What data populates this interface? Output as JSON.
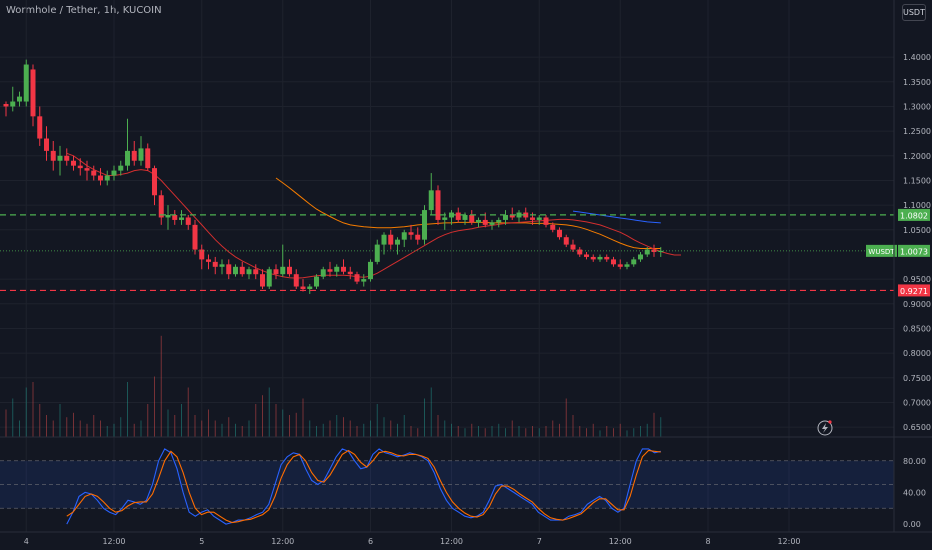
{
  "header": {
    "title": "Wormhole / Tether, 1h, KUCOIN"
  },
  "unit_button": "USDT",
  "colors": {
    "background": "#131722",
    "up": "#26a69a",
    "down": "#ef5350",
    "green": "#4caf50",
    "red": "#f23645",
    "ma_red": "#d32f2f",
    "ma_orange": "#f57c00",
    "ma_blue": "#2962ff",
    "stoch_k": "#2962ff",
    "stoch_d": "#ff6d00",
    "resistance": "#4caf50",
    "support": "#f23645"
  },
  "chart_data": [
    {
      "type": "candlestick",
      "y_axis": {
        "ylim": [
          0.63,
          1.455
        ],
        "ticks": [
          "1.4000",
          "1.3500",
          "1.3000",
          "1.2500",
          "1.2000",
          "1.1500",
          "1.1000",
          "1.0500",
          "0.9500",
          "0.9000",
          "0.8500",
          "0.8000",
          "0.7500",
          "0.7000",
          "0.6500"
        ],
        "tick_values": [
          1.4,
          1.35,
          1.3,
          1.25,
          1.2,
          1.15,
          1.1,
          1.05,
          0.95,
          0.9,
          0.85,
          0.8,
          0.75,
          0.7,
          0.65
        ]
      },
      "x_axis": {
        "labels": [
          "4",
          "12:00",
          "5",
          "12:00",
          "6",
          "12:00",
          "7",
          "12:00",
          "8",
          "12:00"
        ],
        "label_bars": [
          3,
          16,
          29,
          41,
          54,
          66,
          79,
          91,
          104,
          116
        ]
      },
      "candles": [
        [
          1.305,
          1.31,
          1.28,
          1.3
        ],
        [
          1.3,
          1.34,
          1.29,
          1.31
        ],
        [
          1.31,
          1.33,
          1.3,
          1.32
        ],
        [
          1.31,
          1.395,
          1.3,
          1.385
        ],
        [
          1.375,
          1.385,
          1.26,
          1.28
        ],
        [
          1.28,
          1.3,
          1.22,
          1.235
        ],
        [
          1.235,
          1.26,
          1.19,
          1.21
        ],
        [
          1.21,
          1.23,
          1.17,
          1.19
        ],
        [
          1.19,
          1.22,
          1.16,
          1.2
        ],
        [
          1.2,
          1.215,
          1.18,
          1.19
        ],
        [
          1.19,
          1.2,
          1.17,
          1.18
        ],
        [
          1.18,
          1.195,
          1.16,
          1.175
        ],
        [
          1.175,
          1.19,
          1.15,
          1.17
        ],
        [
          1.17,
          1.18,
          1.15,
          1.16
        ],
        [
          1.16,
          1.175,
          1.14,
          1.15
        ],
        [
          1.15,
          1.17,
          1.14,
          1.16
        ],
        [
          1.16,
          1.18,
          1.15,
          1.17
        ],
        [
          1.17,
          1.19,
          1.16,
          1.18
        ],
        [
          1.18,
          1.275,
          1.17,
          1.21
        ],
        [
          1.21,
          1.23,
          1.18,
          1.19
        ],
        [
          1.19,
          1.24,
          1.18,
          1.215
        ],
        [
          1.215,
          1.225,
          1.17,
          1.175
        ],
        [
          1.175,
          1.18,
          1.1,
          1.12
        ],
        [
          1.12,
          1.13,
          1.06,
          1.075
        ],
        [
          1.075,
          1.1,
          1.05,
          1.08
        ],
        [
          1.08,
          1.09,
          1.06,
          1.07
        ],
        [
          1.07,
          1.09,
          1.06,
          1.075
        ],
        [
          1.075,
          1.08,
          1.05,
          1.06
        ],
        [
          1.06,
          1.07,
          1.0,
          1.01
        ],
        [
          1.01,
          1.02,
          0.97,
          0.99
        ],
        [
          0.99,
          1.0,
          0.97,
          0.985
        ],
        [
          0.985,
          0.995,
          0.96,
          0.975
        ],
        [
          0.975,
          0.99,
          0.96,
          0.98
        ],
        [
          0.98,
          0.99,
          0.95,
          0.96
        ],
        [
          0.96,
          0.98,
          0.955,
          0.975
        ],
        [
          0.975,
          0.985,
          0.955,
          0.96
        ],
        [
          0.96,
          0.975,
          0.95,
          0.97
        ],
        [
          0.97,
          0.98,
          0.95,
          0.96
        ],
        [
          0.96,
          0.97,
          0.93,
          0.935
        ],
        [
          0.935,
          0.975,
          0.93,
          0.97
        ],
        [
          0.97,
          0.98,
          0.95,
          0.96
        ],
        [
          0.96,
          1.02,
          0.955,
          0.975
        ],
        [
          0.975,
          0.99,
          0.955,
          0.96
        ],
        [
          0.96,
          0.97,
          0.93,
          0.935
        ],
        [
          0.935,
          0.95,
          0.925,
          0.93
        ],
        [
          0.93,
          0.94,
          0.92,
          0.935
        ],
        [
          0.935,
          0.96,
          0.93,
          0.955
        ],
        [
          0.955,
          0.975,
          0.95,
          0.97
        ],
        [
          0.97,
          0.985,
          0.955,
          0.965
        ],
        [
          0.965,
          0.98,
          0.955,
          0.975
        ],
        [
          0.975,
          0.99,
          0.96,
          0.965
        ],
        [
          0.965,
          0.975,
          0.95,
          0.96
        ],
        [
          0.96,
          0.965,
          0.94,
          0.945
        ],
        [
          0.945,
          0.96,
          0.935,
          0.95
        ],
        [
          0.95,
          0.99,
          0.945,
          0.985
        ],
        [
          0.985,
          1.03,
          0.98,
          1.02
        ],
        [
          1.02,
          1.045,
          1.0,
          1.04
        ],
        [
          1.04,
          1.05,
          1.01,
          1.02
        ],
        [
          1.02,
          1.035,
          1.0,
          1.03
        ],
        [
          1.03,
          1.05,
          1.015,
          1.045
        ],
        [
          1.045,
          1.06,
          1.03,
          1.04
        ],
        [
          1.04,
          1.055,
          1.02,
          1.03
        ],
        [
          1.03,
          1.1,
          1.02,
          1.09
        ],
        [
          1.09,
          1.165,
          1.08,
          1.13
        ],
        [
          1.13,
          1.14,
          1.06,
          1.07
        ],
        [
          1.07,
          1.085,
          1.05,
          1.075
        ],
        [
          1.075,
          1.09,
          1.06,
          1.085
        ],
        [
          1.085,
          1.095,
          1.065,
          1.07
        ],
        [
          1.07,
          1.085,
          1.06,
          1.08
        ],
        [
          1.08,
          1.09,
          1.06,
          1.065
        ],
        [
          1.065,
          1.075,
          1.055,
          1.07
        ],
        [
          1.07,
          1.085,
          1.055,
          1.06
        ],
        [
          1.06,
          1.07,
          1.05,
          1.065
        ],
        [
          1.065,
          1.075,
          1.055,
          1.07
        ],
        [
          1.07,
          1.09,
          1.06,
          1.08
        ],
        [
          1.08,
          1.095,
          1.07,
          1.075
        ],
        [
          1.075,
          1.09,
          1.065,
          1.085
        ],
        [
          1.085,
          1.095,
          1.07,
          1.075
        ],
        [
          1.075,
          1.085,
          1.06,
          1.07
        ],
        [
          1.07,
          1.08,
          1.06,
          1.075
        ],
        [
          1.075,
          1.08,
          1.055,
          1.06
        ],
        [
          1.06,
          1.065,
          1.045,
          1.05
        ],
        [
          1.05,
          1.055,
          1.03,
          1.035
        ],
        [
          1.035,
          1.04,
          1.015,
          1.02
        ],
        [
          1.02,
          1.03,
          1.005,
          1.01
        ],
        [
          1.01,
          1.015,
          0.995,
          1.0
        ],
        [
          1.0,
          1.005,
          0.99,
          0.995
        ],
        [
          0.995,
          1.0,
          0.985,
          0.99
        ],
        [
          0.99,
          1.0,
          0.985,
          0.995
        ],
        [
          0.995,
          1.0,
          0.985,
          0.99
        ],
        [
          0.99,
          0.995,
          0.975,
          0.98
        ],
        [
          0.98,
          0.99,
          0.97,
          0.975
        ],
        [
          0.975,
          0.985,
          0.97,
          0.98
        ],
        [
          0.98,
          0.995,
          0.975,
          0.99
        ],
        [
          0.99,
          1.005,
          0.985,
          1.0
        ],
        [
          1.0,
          1.015,
          0.995,
          1.01
        ],
        [
          1.01,
          1.02,
          0.995,
          1.005
        ],
        [
          1.005,
          1.015,
          0.995,
          1.0073
        ]
      ],
      "volume": [
        0.25,
        0.35,
        0.15,
        0.45,
        0.5,
        0.3,
        0.2,
        0.15,
        0.3,
        0.18,
        0.22,
        0.15,
        0.12,
        0.2,
        0.15,
        0.1,
        0.12,
        0.18,
        0.5,
        0.12,
        0.15,
        0.3,
        0.55,
        0.92,
        0.25,
        0.2,
        0.3,
        0.45,
        0.2,
        0.15,
        0.25,
        0.15,
        0.12,
        0.18,
        0.12,
        0.1,
        0.15,
        0.3,
        0.38,
        0.45,
        0.3,
        0.25,
        0.2,
        0.22,
        0.35,
        0.15,
        0.1,
        0.12,
        0.15,
        0.2,
        0.18,
        0.15,
        0.1,
        0.12,
        0.15,
        0.3,
        0.18,
        0.15,
        0.12,
        0.2,
        0.1,
        0.08,
        0.35,
        0.45,
        0.2,
        0.15,
        0.12,
        0.1,
        0.08,
        0.12,
        0.1,
        0.08,
        0.1,
        0.12,
        0.08,
        0.15,
        0.1,
        0.08,
        0.1,
        0.08,
        0.1,
        0.15,
        0.12,
        0.35,
        0.2,
        0.1,
        0.08,
        0.12,
        0.06,
        0.1,
        0.08,
        0.12,
        0.06,
        0.08,
        0.1,
        0.12,
        0.22,
        0.18
      ],
      "ma_red": {
        "start": 9,
        "values": [
          1.205,
          1.2,
          1.19,
          1.18,
          1.172,
          1.166,
          1.16,
          1.16,
          1.162,
          1.165,
          1.17,
          1.172,
          1.17,
          1.162,
          1.15,
          1.135,
          1.12,
          1.105,
          1.09,
          1.075,
          1.06,
          1.045,
          1.03,
          1.017,
          1.005,
          0.995,
          0.987,
          0.98,
          0.973,
          0.967,
          0.962,
          0.958,
          0.955,
          0.953,
          0.952,
          0.953,
          0.955,
          0.957,
          0.958,
          0.958,
          0.958,
          0.958,
          0.957,
          0.955,
          0.954,
          0.956,
          0.962,
          0.97,
          0.978,
          0.986,
          0.994,
          1.002,
          1.01,
          1.018,
          1.026,
          1.034,
          1.04,
          1.045,
          1.048,
          1.05,
          1.052,
          1.055,
          1.057,
          1.059,
          1.061,
          1.063,
          1.064,
          1.065,
          1.066,
          1.067,
          1.068,
          1.069,
          1.07,
          1.071,
          1.071,
          1.07,
          1.068,
          1.066,
          1.063,
          1.06,
          1.055,
          1.05,
          1.045,
          1.038,
          1.03,
          1.023,
          1.017,
          1.011,
          1.006,
          1.002,
          0.999,
          0.999
        ]
      },
      "ma_orange": {
        "start": 40,
        "values": [
          1.155,
          1.145,
          1.135,
          1.124,
          1.113,
          1.102,
          1.092,
          1.084,
          1.077,
          1.07,
          1.064,
          1.06,
          1.058,
          1.056,
          1.055,
          1.054,
          1.054,
          1.054,
          1.055,
          1.056,
          1.058,
          1.06,
          1.061,
          1.062,
          1.063,
          1.064,
          1.064,
          1.065,
          1.065,
          1.065,
          1.065,
          1.065,
          1.064,
          1.064,
          1.064,
          1.064,
          1.064,
          1.064,
          1.063,
          1.063,
          1.063,
          1.062,
          1.061,
          1.06,
          1.058,
          1.055,
          1.051,
          1.046,
          1.041,
          1.035,
          1.029,
          1.023,
          1.018,
          1.014,
          1.012,
          1.012,
          1.012,
          1.012
        ]
      },
      "ma_blue": {
        "start": 84,
        "values": [
          1.088,
          1.086,
          1.084,
          1.082,
          1.08,
          1.078,
          1.076,
          1.074,
          1.072,
          1.07,
          1.068,
          1.066,
          1.065,
          1.064
        ]
      },
      "hlines": [
        {
          "value": 1.0802,
          "label": "1.0802",
          "color": "green"
        },
        {
          "value": 0.9271,
          "label": "0.9271",
          "color": "red"
        }
      ],
      "last_price": {
        "symbol": "WUSDT",
        "label": "1.0073",
        "value": 1.0073
      }
    },
    {
      "type": "line",
      "indicator": "stochastic",
      "ylim": [
        -10,
        110
      ],
      "ticks": [
        "80.00",
        "40.00",
        "0.00"
      ],
      "tick_values": [
        80,
        40,
        0
      ],
      "band": [
        20,
        80
      ],
      "series": [
        {
          "key": "k",
          "values": [
            0,
            15,
            35,
            40,
            38,
            30,
            20,
            15,
            12,
            20,
            30,
            28,
            25,
            30,
            50,
            80,
            95,
            90,
            70,
            40,
            15,
            10,
            15,
            18,
            10,
            5,
            0,
            2,
            5,
            5,
            8,
            12,
            15,
            25,
            50,
            75,
            85,
            90,
            88,
            70,
            55,
            50,
            55,
            70,
            85,
            95,
            92,
            80,
            70,
            72,
            88,
            95,
            90,
            88,
            85,
            87,
            90,
            88,
            85,
            80,
            65,
            45,
            30,
            20,
            15,
            10,
            8,
            10,
            15,
            30,
            48,
            50,
            45,
            40,
            35,
            30,
            25,
            15,
            10,
            5,
            5,
            5,
            10,
            12,
            15,
            25,
            30,
            35,
            30,
            20,
            15,
            20,
            50,
            80,
            95,
            95,
            90,
            92
          ]
        },
        {
          "key": "d",
          "values": [
            10,
            15,
            25,
            35,
            38,
            35,
            28,
            20,
            15,
            17,
            23,
            27,
            28,
            28,
            38,
            58,
            80,
            92,
            85,
            65,
            40,
            20,
            12,
            15,
            15,
            10,
            5,
            2,
            3,
            5,
            6,
            9,
            12,
            18,
            35,
            58,
            75,
            85,
            88,
            80,
            65,
            55,
            53,
            62,
            75,
            88,
            93,
            88,
            78,
            72,
            80,
            90,
            92,
            90,
            87,
            86,
            88,
            88,
            86,
            83,
            72,
            55,
            40,
            28,
            20,
            14,
            10,
            9,
            12,
            22,
            38,
            48,
            48,
            44,
            38,
            33,
            28,
            20,
            13,
            8,
            6,
            5,
            7,
            10,
            13,
            20,
            27,
            32,
            32,
            25,
            18,
            18,
            35,
            62,
            85,
            93,
            92,
            91
          ]
        }
      ]
    }
  ],
  "icons": {
    "lightning": "lightning-icon"
  }
}
